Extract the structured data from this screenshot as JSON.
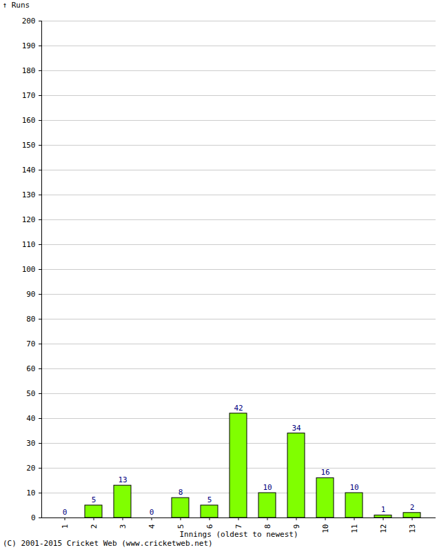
{
  "chart_data": {
    "type": "bar",
    "categories": [
      "1",
      "2",
      "3",
      "4",
      "5",
      "6",
      "7",
      "8",
      "9",
      "10",
      "11",
      "12",
      "13"
    ],
    "values": [
      0,
      5,
      13,
      0,
      8,
      5,
      42,
      10,
      34,
      16,
      10,
      1,
      2
    ],
    "color": "#80ff00",
    "x_label": "Innings (oldest to newest)",
    "y_label": "Runs",
    "ylim": [
      0,
      200
    ],
    "yticks": [
      0,
      10,
      20,
      30,
      40,
      50,
      60,
      70,
      80,
      90,
      100,
      110,
      120,
      130,
      140,
      150,
      160,
      170,
      180,
      190,
      200
    ],
    "grid": true,
    "data_labels": true,
    "caption": "(C) 2001-2015 Cricket Web (www.cricketweb.net)"
  }
}
